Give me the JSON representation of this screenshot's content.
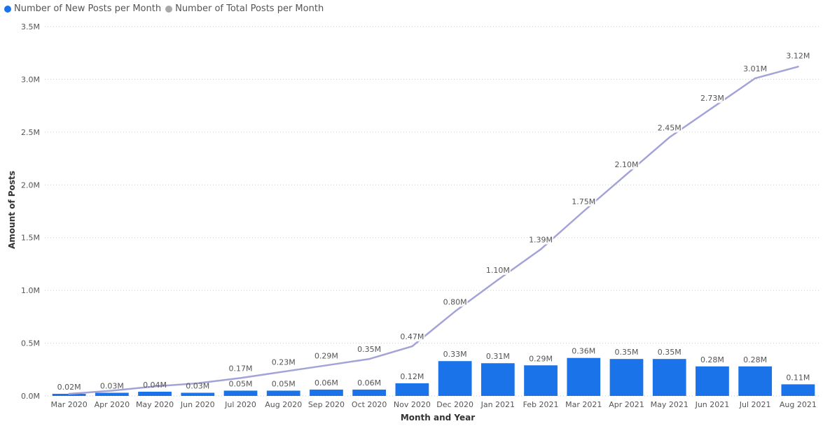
{
  "legend": {
    "items": [
      {
        "label": "Number of New Posts per Month",
        "color": "#1a73e8"
      },
      {
        "label": "Number of Total Posts per Month",
        "color": "#a9a9a9"
      }
    ]
  },
  "chart_data": {
    "type": "bar",
    "xlabel": "Month and Year",
    "ylabel": "Amount of Posts",
    "ylim": [
      0,
      3.5
    ],
    "yticks": [
      "0.0M",
      "0.5M",
      "1.0M",
      "1.5M",
      "2.0M",
      "2.5M",
      "3.0M",
      "3.5M"
    ],
    "grid": true,
    "legend_position": "top-left",
    "categories": [
      "Mar 2020",
      "Apr 2020",
      "May 2020",
      "Jun 2020",
      "Jul 2020",
      "Aug 2020",
      "Sep 2020",
      "Oct 2020",
      "Nov 2020",
      "Dec 2020",
      "Jan 2021",
      "Feb 2021",
      "Mar 2021",
      "Apr 2021",
      "May 2021",
      "Jun 2021",
      "Jul 2021",
      "Aug 2021"
    ],
    "series": [
      {
        "name": "Number of New Posts per Month",
        "type": "bar",
        "color": "#1a73e8",
        "values": [
          0.02,
          0.03,
          0.04,
          0.03,
          0.05,
          0.05,
          0.06,
          0.06,
          0.12,
          0.33,
          0.31,
          0.29,
          0.36,
          0.35,
          0.35,
          0.28,
          0.28,
          0.11
        ],
        "labels": [
          "0.02M",
          "0.03M",
          "0.04M",
          "0.03M",
          "0.05M",
          "0.05M",
          "0.06M",
          "0.06M",
          "0.12M",
          "0.33M",
          "0.31M",
          "0.29M",
          "0.36M",
          "0.35M",
          "0.35M",
          "0.28M",
          "0.28M",
          "0.11M"
        ]
      },
      {
        "name": "Number of Total Posts per Month",
        "type": "line",
        "color": "#a3a3d8",
        "values": [
          0.02,
          0.05,
          0.09,
          0.12,
          0.17,
          0.23,
          0.29,
          0.35,
          0.47,
          0.8,
          1.1,
          1.39,
          1.75,
          2.1,
          2.45,
          2.73,
          3.01,
          3.12
        ],
        "labels": [
          "",
          "",
          "",
          "",
          "0.17M",
          "0.23M",
          "0.29M",
          "0.35M",
          "0.47M",
          "0.80M",
          "1.10M",
          "1.39M",
          "1.75M",
          "2.10M",
          "2.45M",
          "2.73M",
          "3.01M",
          "3.12M"
        ]
      }
    ]
  }
}
